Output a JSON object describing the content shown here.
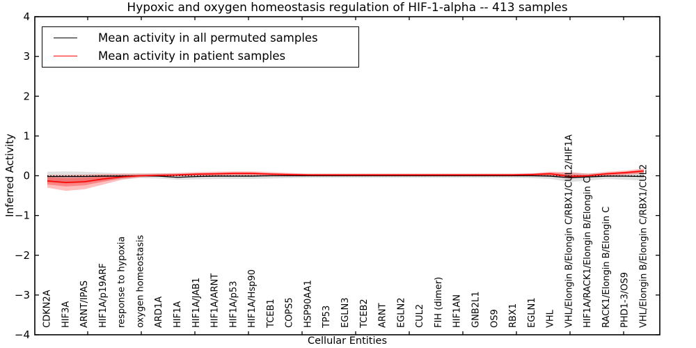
{
  "chart_data": {
    "type": "line",
    "title": "Hypoxic and oxygen homeostasis regulation of HIF-1-alpha -- 413 samples",
    "xlabel": "Cellular Entities",
    "ylabel": "Inferred Activity",
    "ylim": [
      -4,
      4
    ],
    "yticks": {
      "values": [
        4,
        3,
        2,
        1,
        0,
        -1,
        -2,
        -3,
        -4
      ],
      "labels": [
        "4",
        "3",
        "2",
        "1",
        "0",
        "−1",
        "−2",
        "−3",
        "−4"
      ]
    },
    "grid": false,
    "zero_line": "dotted",
    "legend": {
      "position": "upper-left",
      "items": [
        {
          "label": "Mean activity in all permuted samples",
          "color": "#000000"
        },
        {
          "label": "Mean activity in patient samples",
          "color": "#ff0000"
        }
      ]
    },
    "categories": [
      "CDKN2A",
      "HIF3A",
      "ARNT/IPAS",
      "HIF1A/p19ARF",
      "response to hypoxia",
      "oxygen homeostasis",
      "ARD1A",
      "HIF1A",
      "HIF1A/JAB1",
      "HIF1A/ARNT",
      "HIF1A/p53",
      "HIF1A/Hsp90",
      "TCEB1",
      "COPS5",
      "HSP90AA1",
      "TP53",
      "EGLN3",
      "TCEB2",
      "ARNT",
      "EGLN2",
      "CUL2",
      "FIH (dimer)",
      "HIF1AN",
      "GNB2L1",
      "OS9",
      "RBX1",
      "EGLN1",
      "VHL",
      "VHL/Elongin B/Elongin C/RBX1/CUL2/HIF1A",
      "HIF1A/RACK1/Elongin B/Elongin C",
      "RACK1/Elongin B/Elongin C",
      "PHD1-3/OS9",
      "VHL/Elongin B/Elongin C/RBX1/CUL2"
    ],
    "series": [
      {
        "name": "Mean activity in all permuted samples",
        "color": "#000000",
        "values": [
          -0.02,
          -0.02,
          -0.02,
          -0.01,
          -0.01,
          0,
          -0.01,
          -0.04,
          -0.02,
          -0.01,
          -0.01,
          -0.01,
          0,
          0,
          0,
          0,
          0,
          0,
          0,
          0,
          0,
          0,
          0,
          0,
          0,
          0,
          0,
          -0.01,
          -0.05,
          -0.03,
          -0.01,
          -0.01,
          -0.02
        ]
      },
      {
        "name": "Mean activity in patient samples",
        "color": "#ff0000",
        "values": [
          -0.13,
          -0.17,
          -0.15,
          -0.08,
          -0.03,
          0,
          0.01,
          0.02,
          0.04,
          0.05,
          0.06,
          0.06,
          0.04,
          0.03,
          0.02,
          0.02,
          0.02,
          0.02,
          0.02,
          0.02,
          0.02,
          0.02,
          0.02,
          0.02,
          0.02,
          0.02,
          0.03,
          0.05,
          -0.02,
          0,
          0.05,
          0.08,
          0.12
        ]
      }
    ],
    "bands": [
      {
        "name": "permuted-range",
        "color": "#999999",
        "opacity": 0.3,
        "lo": [
          -0.17,
          -0.2,
          -0.18,
          -0.12,
          -0.08,
          -0.06,
          -0.07,
          -0.1,
          -0.09,
          -0.08,
          -0.08,
          -0.08,
          -0.07,
          -0.06,
          -0.05,
          -0.05,
          -0.05,
          -0.05,
          -0.05,
          -0.05,
          -0.05,
          -0.05,
          -0.05,
          -0.05,
          -0.05,
          -0.05,
          -0.06,
          -0.08,
          -0.16,
          -0.12,
          -0.08,
          -0.1,
          -0.12
        ],
        "hi": [
          0.1,
          0.11,
          0.1,
          0.08,
          0.06,
          0.06,
          0.06,
          0.06,
          0.06,
          0.06,
          0.06,
          0.06,
          0.06,
          0.05,
          0.05,
          0.05,
          0.05,
          0.05,
          0.05,
          0.05,
          0.05,
          0.05,
          0.05,
          0.05,
          0.05,
          0.05,
          0.06,
          0.06,
          0.08,
          0.06,
          0.07,
          0.08,
          0.1
        ]
      },
      {
        "name": "patient-range-outer",
        "color": "#ff0000",
        "opacity": 0.25,
        "lo": [
          -0.3,
          -0.38,
          -0.34,
          -0.22,
          -0.1,
          -0.04,
          -0.02,
          -0.01,
          0,
          0,
          0.01,
          0.01,
          0,
          -0.01,
          -0.01,
          -0.01,
          -0.01,
          -0.01,
          -0.01,
          -0.01,
          -0.01,
          -0.01,
          -0.01,
          -0.01,
          -0.01,
          -0.01,
          -0.01,
          0,
          -0.07,
          -0.04,
          0,
          0.02,
          0.05
        ],
        "hi": [
          0.02,
          0.02,
          0.03,
          0.04,
          0.05,
          0.05,
          0.06,
          0.07,
          0.09,
          0.1,
          0.11,
          0.11,
          0.09,
          0.07,
          0.05,
          0.05,
          0.05,
          0.05,
          0.05,
          0.05,
          0.05,
          0.05,
          0.05,
          0.05,
          0.05,
          0.05,
          0.06,
          0.1,
          0.09,
          0.05,
          0.1,
          0.13,
          0.18
        ]
      },
      {
        "name": "patient-range-inner",
        "color": "#ff0000",
        "opacity": 0.3,
        "lo": [
          -0.22,
          -0.27,
          -0.24,
          -0.15,
          -0.06,
          -0.02,
          -0.01,
          0,
          0.01,
          0.02,
          0.03,
          0.03,
          0.02,
          0,
          0,
          0,
          0,
          0,
          0,
          0,
          0,
          0,
          0,
          0,
          0,
          0,
          0,
          0.02,
          -0.04,
          -0.02,
          0.02,
          0.04,
          0.08
        ],
        "hi": [
          -0.04,
          -0.06,
          -0.05,
          -0.01,
          0.01,
          0.02,
          0.03,
          0.04,
          0.06,
          0.07,
          0.08,
          0.08,
          0.06,
          0.05,
          0.04,
          0.04,
          0.04,
          0.04,
          0.04,
          0.04,
          0.04,
          0.04,
          0.04,
          0.04,
          0.04,
          0.04,
          0.05,
          0.08,
          0.03,
          0.02,
          0.07,
          0.1,
          0.15
        ]
      }
    ]
  }
}
